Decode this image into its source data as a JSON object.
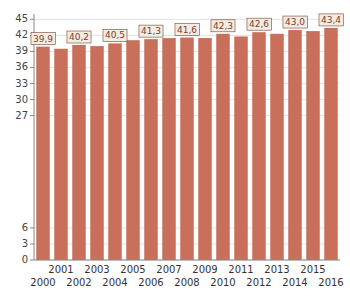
{
  "chart_data": {
    "type": "bar",
    "categories": [
      "2000",
      "2001",
      "2002",
      "2003",
      "2004",
      "2005",
      "2006",
      "2007",
      "2008",
      "2009",
      "2010",
      "2011",
      "2012",
      "2013",
      "2014",
      "2015",
      "2016"
    ],
    "values": [
      39.9,
      39.5,
      40.2,
      40.0,
      40.5,
      41.1,
      41.3,
      41.5,
      41.6,
      41.5,
      42.3,
      41.8,
      42.6,
      42.3,
      43.0,
      42.8,
      43.4
    ],
    "value_labels": [
      "39,9",
      null,
      "40,2",
      null,
      "40,5",
      null,
      "41,3",
      null,
      "41,6",
      null,
      "42,3",
      null,
      "42,6",
      null,
      "43,0",
      null,
      "43,4"
    ],
    "color": "#c8705a",
    "ylim": [
      0,
      46
    ],
    "yticks": [
      0,
      3,
      6,
      27,
      30,
      33,
      36,
      39,
      42,
      45
    ],
    "grid": true
  }
}
